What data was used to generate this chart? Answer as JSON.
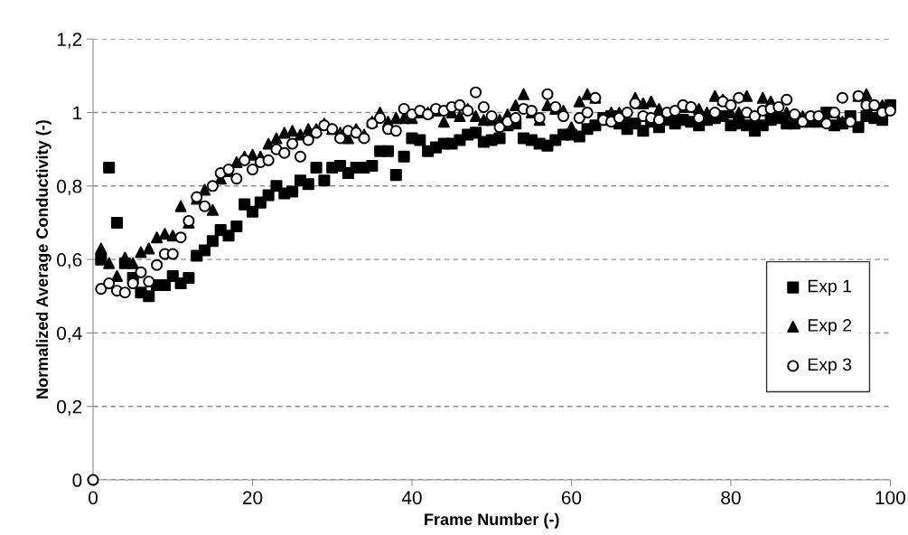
{
  "chart_data": {
    "type": "scatter",
    "xlabel": "Frame Number (-)",
    "ylabel": "Normalized Average Conductivity (-)",
    "x": [
      0,
      1,
      2,
      3,
      4,
      5,
      6,
      7,
      8,
      9,
      10,
      11,
      12,
      13,
      14,
      15,
      16,
      17,
      18,
      19,
      20,
      21,
      22,
      23,
      24,
      25,
      26,
      27,
      28,
      29,
      30,
      31,
      32,
      33,
      34,
      35,
      36,
      37,
      38,
      39,
      40,
      41,
      42,
      43,
      44,
      45,
      46,
      47,
      48,
      49,
      50,
      51,
      52,
      53,
      54,
      55,
      56,
      57,
      58,
      59,
      60,
      61,
      62,
      63,
      64,
      65,
      66,
      67,
      68,
      69,
      70,
      71,
      72,
      73,
      74,
      75,
      76,
      77,
      78,
      79,
      80,
      81,
      82,
      83,
      84,
      85,
      86,
      87,
      88,
      89,
      90,
      91,
      92,
      93,
      94,
      95,
      96,
      97,
      98,
      99,
      100
    ],
    "series": [
      {
        "name": "Exp 1",
        "color": "#000000",
        "marker": "square",
        "values": [
          null,
          0.6,
          0.85,
          0.7,
          0.59,
          0.55,
          0.51,
          0.5,
          0.53,
          0.53,
          0.555,
          0.535,
          0.55,
          0.61,
          0.625,
          0.65,
          0.68,
          0.665,
          0.69,
          0.75,
          0.73,
          0.755,
          0.775,
          0.8,
          0.78,
          0.785,
          0.815,
          0.805,
          0.85,
          0.815,
          0.85,
          0.855,
          0.835,
          0.85,
          0.85,
          0.855,
          0.895,
          0.895,
          0.83,
          0.88,
          0.93,
          0.925,
          0.895,
          0.905,
          0.915,
          0.915,
          0.925,
          0.94,
          0.945,
          0.92,
          0.925,
          0.93,
          0.965,
          0.97,
          0.93,
          0.925,
          0.915,
          0.91,
          0.925,
          0.94,
          0.94,
          0.935,
          0.955,
          0.965,
          0.985,
          0.99,
          0.97,
          0.955,
          0.97,
          0.95,
          0.975,
          0.96,
          0.98,
          0.97,
          0.98,
          0.975,
          0.965,
          0.98,
          0.985,
          0.99,
          0.965,
          0.97,
          0.965,
          0.95,
          0.965,
          0.98,
          0.985,
          0.97,
          0.97,
          0.975,
          null,
          0.975,
          1.0,
          0.965,
          0.97,
          0.99,
          0.96,
          0.99,
          0.985,
          0.98,
          1.02
        ]
      },
      {
        "name": "Exp 2",
        "color": "#000000",
        "marker": "triangle",
        "values": [
          null,
          0.63,
          0.59,
          0.555,
          0.605,
          0.59,
          0.62,
          0.63,
          0.66,
          0.67,
          0.665,
          0.745,
          0.7,
          0.765,
          0.79,
          0.735,
          0.82,
          0.84,
          0.865,
          0.88,
          0.885,
          0.88,
          0.915,
          0.93,
          0.945,
          0.95,
          0.94,
          0.955,
          0.955,
          0.97,
          0.955,
          0.945,
          0.93,
          0.955,
          0.94,
          0.975,
          1.0,
          0.975,
          0.985,
          0.985,
          0.985,
          1.0,
          1.0,
          1.005,
          0.975,
          1.0,
          0.99,
          1.01,
          0.99,
          0.98,
          0.98,
          0.98,
          0.995,
          1.02,
          1.05,
          1.0,
          0.98,
          1.02,
          1.01,
          1.005,
          0.96,
          1.03,
          1.05,
          1.04,
          0.98,
          1.0,
          1.0,
          0.98,
          1.04,
          1.025,
          1.03,
          1.01,
          null,
          0.99,
          1.015,
          1.015,
          1.01,
          1.0,
          1.045,
          1.035,
          1.0,
          1.0,
          1.045,
          0.98,
          1.04,
          1.03,
          null,
          1.0,
          null,
          0.99,
          0.975,
          null,
          null,
          1.0,
          0.975,
          null,
          1.045,
          1.05,
          1.02,
          1.02,
          null
        ]
      },
      {
        "name": "Exp 3",
        "color": "#000000",
        "marker": "circle",
        "values": [
          0,
          0.52,
          0.535,
          0.515,
          0.51,
          0.535,
          0.565,
          0.54,
          0.585,
          0.615,
          0.615,
          0.66,
          0.705,
          0.77,
          0.745,
          0.8,
          0.835,
          0.845,
          0.82,
          0.87,
          0.845,
          0.865,
          0.87,
          0.9,
          0.89,
          0.915,
          0.88,
          0.925,
          0.945,
          0.965,
          0.955,
          0.93,
          0.95,
          0.945,
          0.93,
          0.97,
          0.985,
          0.955,
          0.95,
          1.01,
          0.995,
          1.005,
          0.995,
          1.01,
          1.005,
          1.015,
          1.02,
          1.005,
          1.055,
          1.015,
          0.99,
          0.96,
          0.975,
          0.985,
          1.01,
          1.005,
          0.985,
          1.05,
          1.015,
          0.99,
          null,
          0.985,
          1.0,
          1.04,
          0.98,
          0.975,
          0.985,
          1.0,
          1.025,
          0.99,
          0.985,
          0.98,
          1.0,
          1.005,
          1.02,
          1.015,
          0.985,
          null,
          1.0,
          1.03,
          1.02,
          1.04,
          1.0,
          0.99,
          1.005,
          1.01,
          1.015,
          1.035,
          0.995,
          0.975,
          0.99,
          0.99,
          0.97,
          1.0,
          1.04,
          0.975,
          1.045,
          1.02,
          1.02,
          1.0,
          1.005
        ]
      }
    ],
    "xlim": [
      0,
      100
    ],
    "xticks": [
      0,
      20,
      40,
      60,
      80,
      100
    ],
    "ylim": [
      0,
      1.2
    ],
    "yticks": [
      0,
      {
        "value": 0.2,
        "label": "0,2"
      },
      {
        "value": 0.4,
        "label": "0,4"
      },
      {
        "value": 0.6,
        "label": "0,6"
      },
      {
        "value": 0.8,
        "label": "0,8"
      },
      1,
      {
        "value": 1.2,
        "label": "1,2"
      }
    ],
    "grid": "y",
    "legend": "lower right"
  }
}
